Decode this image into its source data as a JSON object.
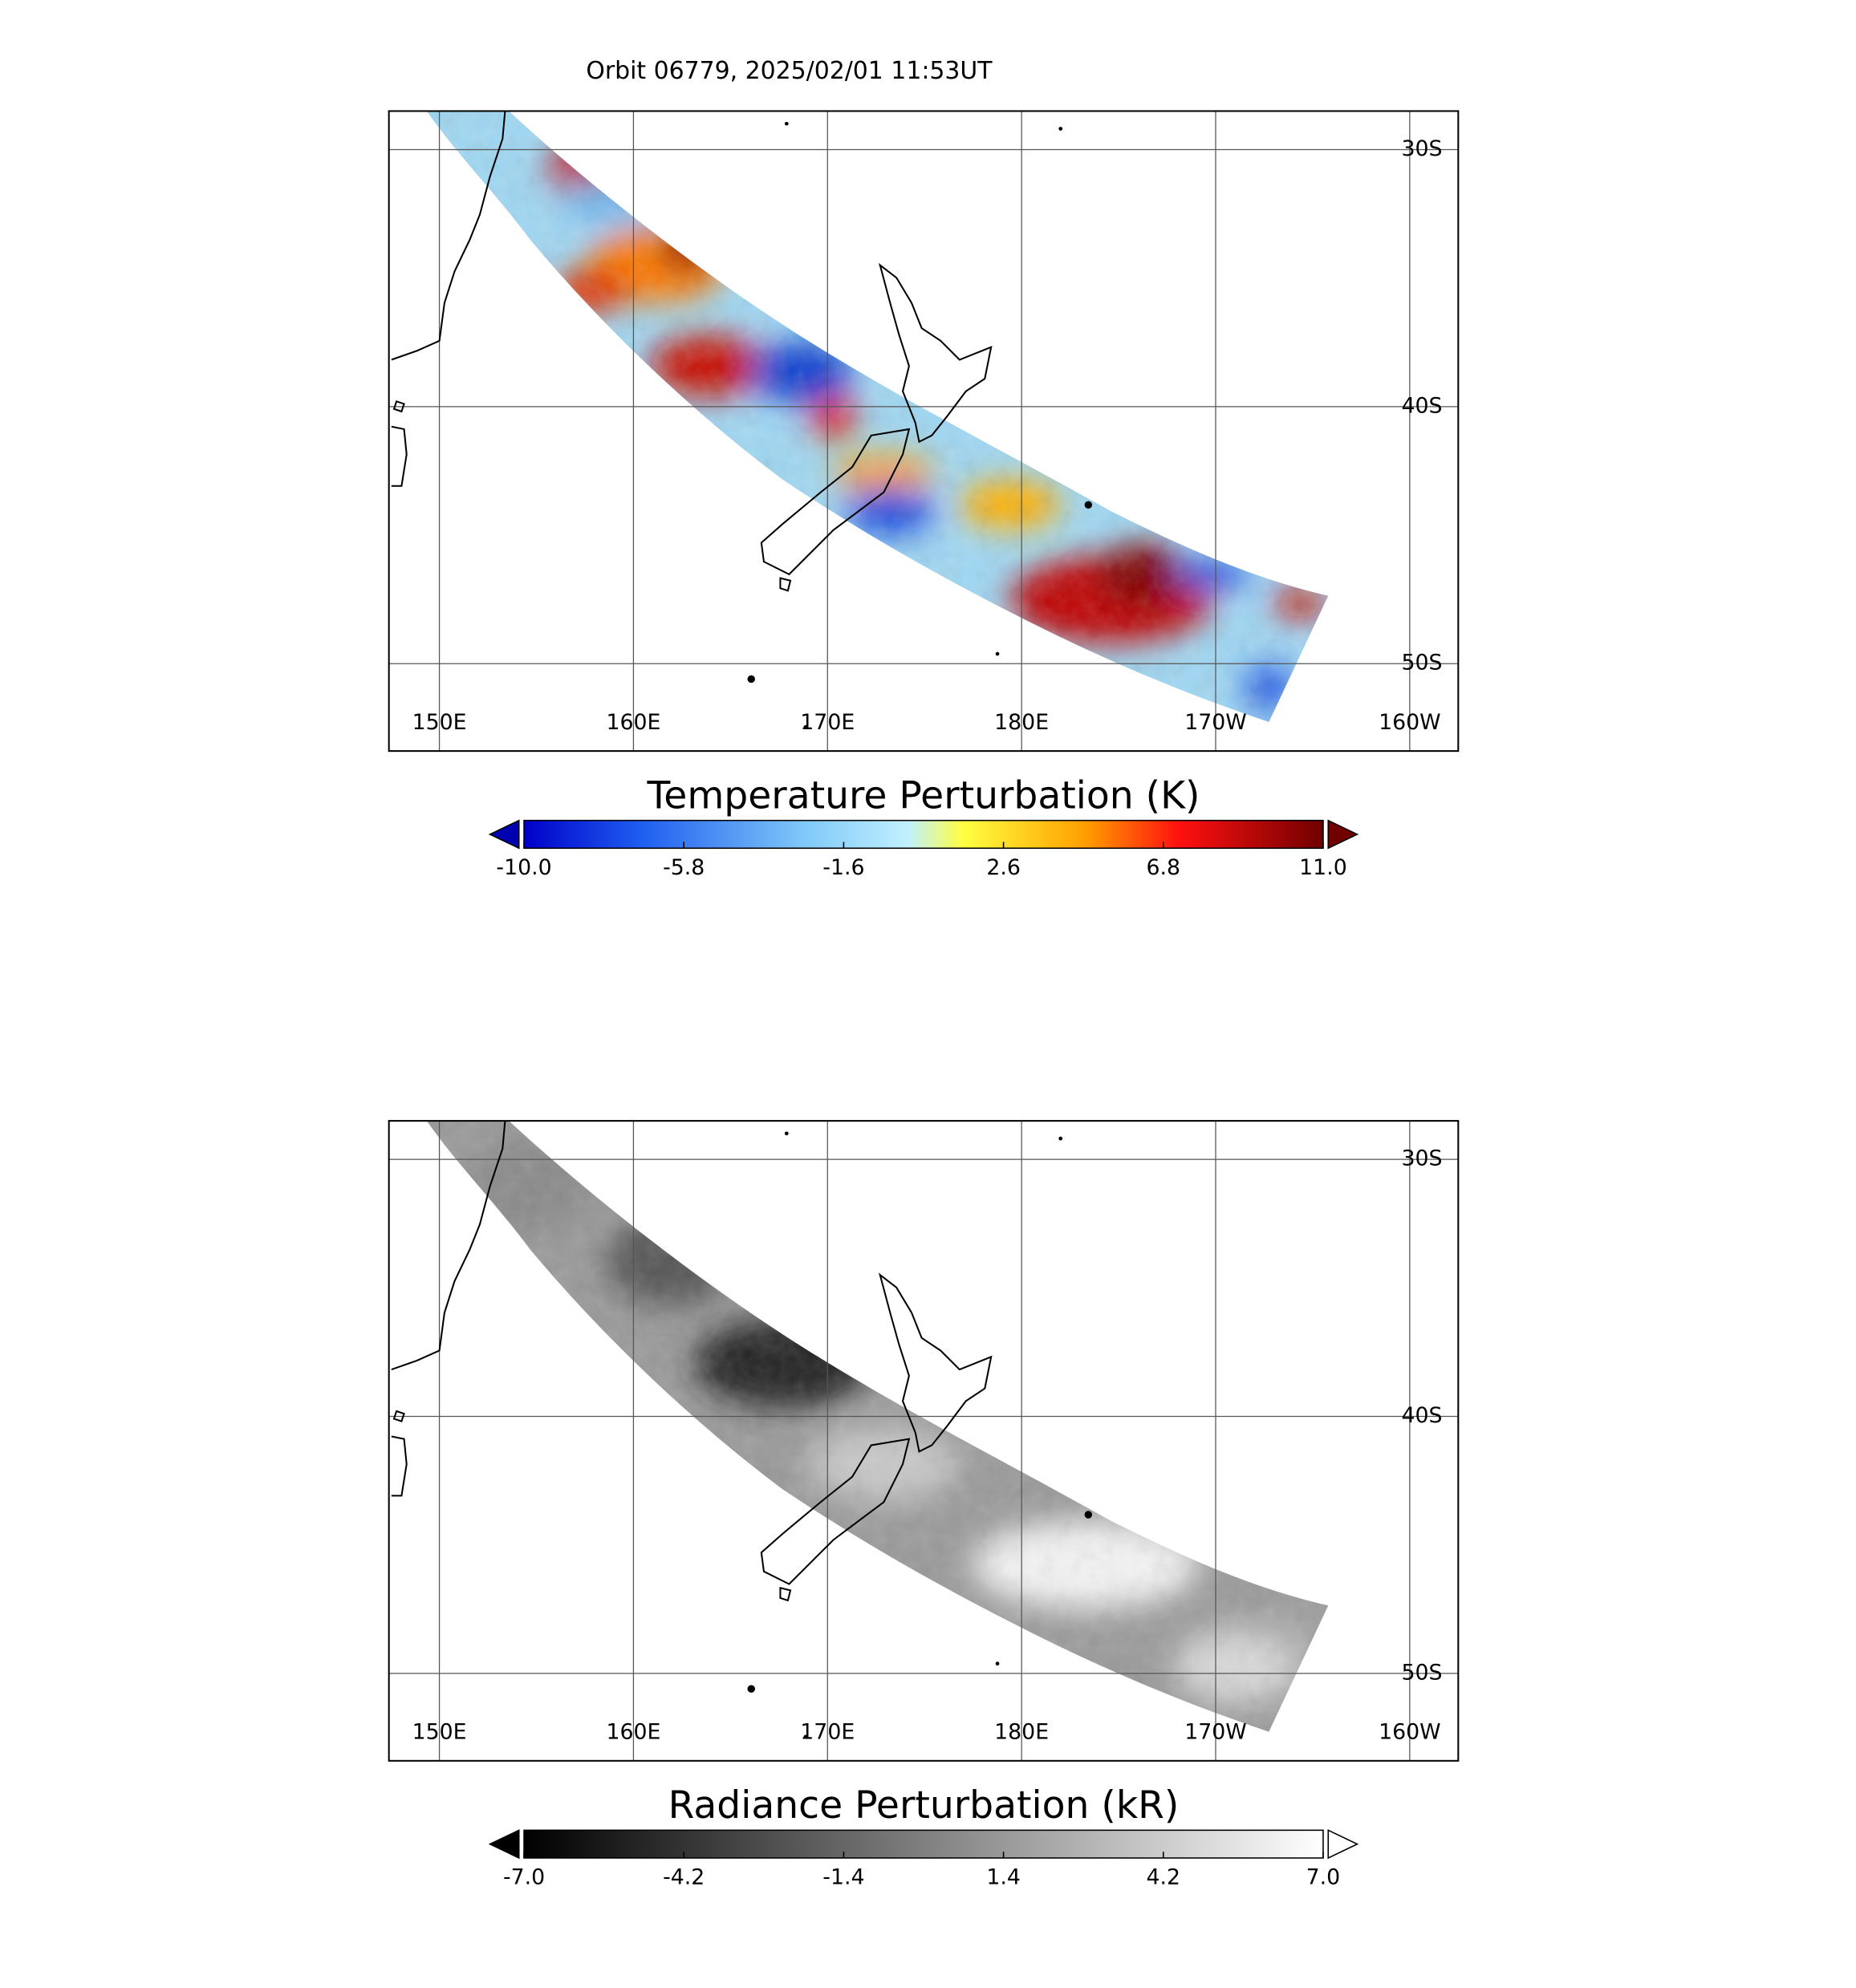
{
  "title": "Orbit 06779, 2025/02/01 11:53UT",
  "map": {
    "xlim": [
      147.4,
      202.5
    ],
    "ylim": [
      -28.5,
      -53.4
    ],
    "lon_ticks": [
      {
        "value": 150,
        "label": "150E"
      },
      {
        "value": 160,
        "label": "160E"
      },
      {
        "value": 170,
        "label": "170E"
      },
      {
        "value": 180,
        "label": "180E"
      },
      {
        "value": 190,
        "label": "170W"
      },
      {
        "value": 200,
        "label": "160W"
      }
    ],
    "lat_ticks": [
      {
        "value": -30,
        "label": "30S"
      },
      {
        "value": -40,
        "label": "40S"
      },
      {
        "value": -50,
        "label": "50S"
      }
    ]
  },
  "panels": [
    {
      "colorbar_title": "Temperature Perturbation (K)",
      "colorbar_ticks": [
        {
          "value": -10,
          "label": "-10.0"
        },
        {
          "value": -5.8,
          "label": "-5.8"
        },
        {
          "value": -1.6,
          "label": "-1.6"
        },
        {
          "value": 2.6,
          "label": "2.6"
        },
        {
          "value": 6.8,
          "label": "6.8"
        },
        {
          "value": 11,
          "label": "11.0"
        }
      ]
    },
    {
      "colorbar_title": "Radiance Perturbation (kR)",
      "colorbar_ticks": [
        {
          "value": -7,
          "label": "-7.0"
        },
        {
          "value": -4.2,
          "label": "-4.2"
        },
        {
          "value": -1.4,
          "label": "-1.4"
        },
        {
          "value": 1.4,
          "label": "1.4"
        },
        {
          "value": 4.2,
          "label": "4.2"
        },
        {
          "value": 7,
          "label": "7.0"
        }
      ]
    }
  ]
}
